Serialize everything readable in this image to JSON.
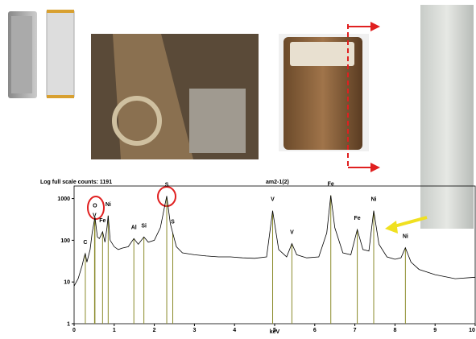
{
  "chart_data": {
    "type": "line",
    "title": "Log full scale counts: 1191",
    "subtitle": "am2-1(2)",
    "xlabel": "keV",
    "log_y": true,
    "x": [
      0,
      0.1,
      0.2,
      0.25,
      0.28,
      0.32,
      0.4,
      0.45,
      0.52,
      0.58,
      0.63,
      0.71,
      0.77,
      0.82,
      0.85,
      0.9,
      1.0,
      1.1,
      1.2,
      1.35,
      1.49,
      1.6,
      1.74,
      1.85,
      2.0,
      2.15,
      2.31,
      2.4,
      2.46,
      2.55,
      2.7,
      3.0,
      3.3,
      3.6,
      3.9,
      4.2,
      4.5,
      4.8,
      4.95,
      5.1,
      5.3,
      5.43,
      5.55,
      5.8,
      6.1,
      6.3,
      6.4,
      6.5,
      6.7,
      6.9,
      7.06,
      7.2,
      7.35,
      7.47,
      7.6,
      7.8,
      8.0,
      8.15,
      8.26,
      8.4,
      8.6,
      9.0,
      9.5,
      10
    ],
    "series": [
      {
        "color": "#000000",
        "values": [
          8,
          12,
          25,
          40,
          48,
          30,
          60,
          150,
          360,
          120,
          110,
          160,
          90,
          200,
          390,
          100,
          70,
          60,
          65,
          70,
          110,
          80,
          120,
          90,
          100,
          200,
          1150,
          250,
          150,
          70,
          50,
          45,
          42,
          40,
          40,
          38,
          37,
          40,
          510,
          60,
          40,
          83,
          45,
          38,
          40,
          150,
          1190,
          200,
          50,
          45,
          180,
          60,
          55,
          510,
          80,
          40,
          35,
          38,
          66,
          30,
          20,
          15,
          12,
          13
        ]
      }
    ],
    "markers": [
      {
        "label": "C",
        "energy": 0.28
      },
      {
        "label": "O",
        "energy": 0.52
      },
      {
        "label": "V",
        "energy": 0.51
      },
      {
        "label": "Fe",
        "energy": 0.71
      },
      {
        "label": "Ni",
        "energy": 0.85
      },
      {
        "label": "Al",
        "energy": 1.49
      },
      {
        "label": "Si",
        "energy": 1.74
      },
      {
        "label": "S",
        "energy": 2.31
      },
      {
        "label": "S",
        "energy": 2.46
      },
      {
        "label": "V",
        "energy": 4.95
      },
      {
        "label": "V",
        "energy": 5.43
      },
      {
        "label": "Fe",
        "energy": 6.4
      },
      {
        "label": "Fe",
        "energy": 7.06
      },
      {
        "label": "Ni",
        "energy": 7.47
      },
      {
        "label": "Ni",
        "energy": 8.26
      }
    ],
    "marker_color": "#8a8a2a",
    "xlim": [
      0,
      10
    ],
    "xticks": [
      0,
      1,
      2,
      3,
      4,
      5,
      6,
      7,
      8,
      9,
      10
    ],
    "ylim": [
      1,
      2000
    ],
    "yticks": [
      1,
      10,
      100,
      1000
    ]
  }
}
